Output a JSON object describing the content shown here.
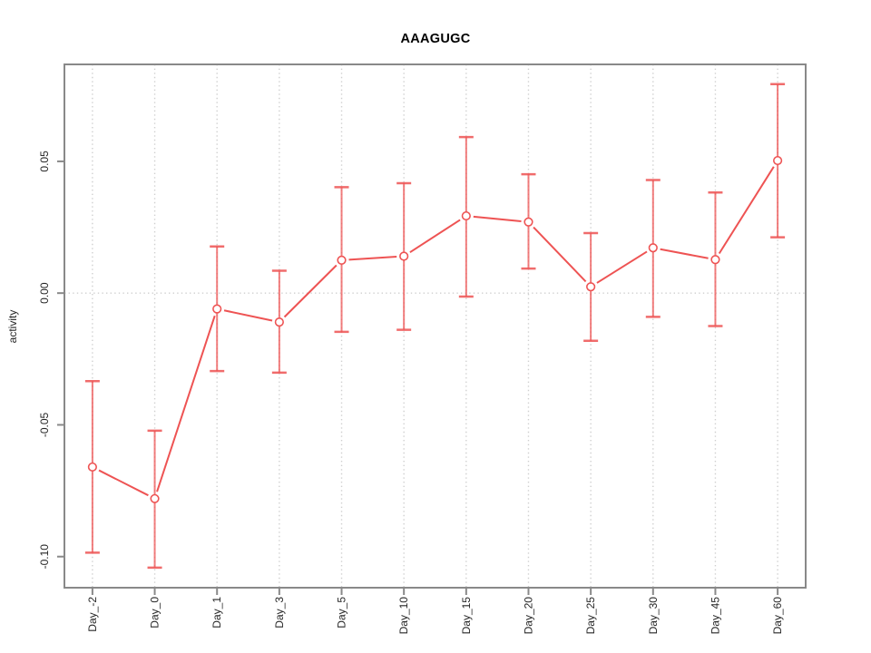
{
  "chart_data": {
    "type": "line",
    "title": "AAAGUGC",
    "xlabel": "",
    "ylabel": "activity",
    "legend_position": "none",
    "categories": [
      "Day_-2",
      "Day_0",
      "Day_1",
      "Day_3",
      "Day_5",
      "Day_10",
      "Day_15",
      "Day_20",
      "Day_25",
      "Day_30",
      "Day_45",
      "Day_60"
    ],
    "series": [
      {
        "name": "activity",
        "values": [
          -0.066,
          -0.078,
          -0.006,
          -0.011,
          0.0125,
          0.014,
          0.0293,
          0.027,
          0.0024,
          0.0172,
          0.0127,
          0.0503
        ],
        "error_low": [
          -0.0985,
          -0.1042,
          -0.0296,
          -0.0302,
          -0.0147,
          -0.0139,
          -0.0013,
          0.0093,
          -0.0181,
          -0.009,
          -0.0125,
          0.0212
        ],
        "error_high": [
          -0.0334,
          -0.0522,
          0.0177,
          0.0085,
          0.0402,
          0.0417,
          0.0592,
          0.0451,
          0.0228,
          0.0429,
          0.0382,
          0.0793
        ]
      }
    ],
    "point_style": "open-circle",
    "line_style": "segments-with-gaps",
    "yticks": [
      {
        "value": 0.05,
        "label": "0.05"
      },
      {
        "value": 0.0,
        "label": "0.00"
      },
      {
        "value": -0.05,
        "label": "-0.05"
      },
      {
        "value": -0.1,
        "label": "-0.10"
      }
    ],
    "ylim": [
      -0.1118,
      0.0868
    ],
    "xlim": [
      0.55,
      12.45
    ],
    "grid": {
      "vertical": "dotted line at every category",
      "horizontal": "dotted line at y=0 only"
    },
    "colors": {
      "series": "#ee5353",
      "error_bar": "#ee5353",
      "grid": "#cfcfcf",
      "frame": "#898989",
      "tick_label": "#262626",
      "title": "#000000",
      "point_fill": "#ffffff"
    }
  }
}
